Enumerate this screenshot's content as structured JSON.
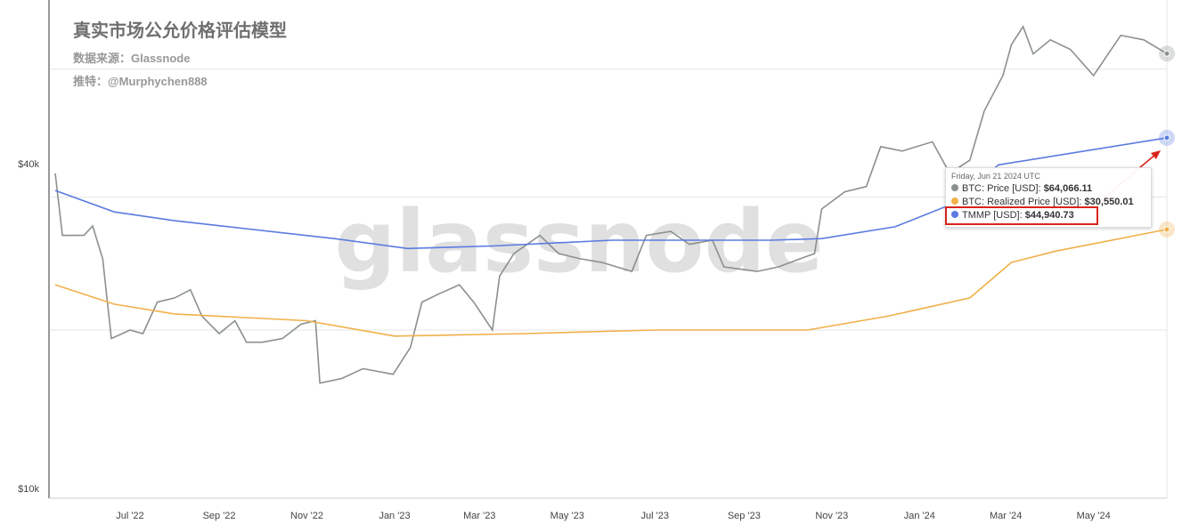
{
  "header": {
    "title": "真实市场公允价格评估模型",
    "source": "数据来源：Glassnode",
    "twitter": "推特：@Murphychen888"
  },
  "watermark": "glassnode",
  "tooltip": {
    "date": "Friday, Jun 21 2024 UTC",
    "rows": [
      {
        "label": "BTC: Price [USD]:",
        "value": "$64,066.11",
        "color": "#8a918d"
      },
      {
        "label": "BTC: Realized Price [USD]:",
        "value": "$30,550.01",
        "color": "#f0b04a"
      },
      {
        "label": "TMMP [USD]:",
        "value": "$44,940.73",
        "color": "#5b7be0",
        "highlighted": true
      }
    ]
  },
  "colors": {
    "highlight": "#d9241b"
  },
  "chart_data": {
    "type": "line",
    "yscale": "log",
    "ylim": [
      10000,
      80000
    ],
    "xlim": [
      "2022-05-10",
      "2024-06-21"
    ],
    "y_ticks": [
      {
        "value": 40000,
        "label": "$40k"
      },
      {
        "value": 10000,
        "label": "$10k"
      }
    ],
    "x_ticks": [
      {
        "date": "2022-07-01",
        "label": "Jul '22"
      },
      {
        "date": "2022-09-01",
        "label": "Sep '22"
      },
      {
        "date": "2022-11-01",
        "label": "Nov '22"
      },
      {
        "date": "2023-01-01",
        "label": "Jan '23"
      },
      {
        "date": "2023-03-01",
        "label": "Mar '23"
      },
      {
        "date": "2023-05-01",
        "label": "May '23"
      },
      {
        "date": "2023-07-01",
        "label": "Jul '23"
      },
      {
        "date": "2023-09-01",
        "label": "Sep '23"
      },
      {
        "date": "2023-11-01",
        "label": "Nov '23"
      },
      {
        "date": "2024-01-01",
        "label": "Jan '24"
      },
      {
        "date": "2024-03-01",
        "label": "Mar '24"
      },
      {
        "date": "2024-05-01",
        "label": "May '24"
      }
    ],
    "series": [
      {
        "name": "BTC: Price [USD]",
        "color": "#8a918d",
        "points": [
          [
            "2022-05-10",
            38700
          ],
          [
            "2022-05-15",
            29800
          ],
          [
            "2022-05-30",
            29800
          ],
          [
            "2022-06-05",
            31000
          ],
          [
            "2022-06-12",
            27000
          ],
          [
            "2022-06-18",
            19300
          ],
          [
            "2022-07-01",
            20000
          ],
          [
            "2022-07-10",
            19700
          ],
          [
            "2022-07-20",
            22500
          ],
          [
            "2022-08-01",
            22900
          ],
          [
            "2022-08-12",
            23700
          ],
          [
            "2022-08-20",
            21200
          ],
          [
            "2022-09-01",
            19700
          ],
          [
            "2022-09-12",
            20800
          ],
          [
            "2022-09-20",
            19000
          ],
          [
            "2022-10-01",
            19000
          ],
          [
            "2022-10-15",
            19300
          ],
          [
            "2022-10-28",
            20500
          ],
          [
            "2022-11-07",
            20800
          ],
          [
            "2022-11-10",
            16000
          ],
          [
            "2022-11-25",
            16300
          ],
          [
            "2022-12-10",
            17000
          ],
          [
            "2022-12-31",
            16600
          ],
          [
            "2023-01-12",
            18600
          ],
          [
            "2023-01-20",
            22500
          ],
          [
            "2023-02-01",
            23300
          ],
          [
            "2023-02-15",
            24200
          ],
          [
            "2023-02-25",
            22500
          ],
          [
            "2023-03-10",
            20000
          ],
          [
            "2023-03-15",
            25100
          ],
          [
            "2023-03-25",
            27600
          ],
          [
            "2023-04-12",
            29800
          ],
          [
            "2023-04-25",
            27600
          ],
          [
            "2023-05-10",
            27000
          ],
          [
            "2023-05-25",
            26600
          ],
          [
            "2023-06-15",
            25600
          ],
          [
            "2023-06-25",
            29800
          ],
          [
            "2023-07-12",
            30300
          ],
          [
            "2023-07-25",
            28700
          ],
          [
            "2023-08-10",
            29200
          ],
          [
            "2023-08-18",
            26100
          ],
          [
            "2023-09-10",
            25600
          ],
          [
            "2023-09-25",
            26100
          ],
          [
            "2023-10-10",
            27000
          ],
          [
            "2023-10-20",
            27600
          ],
          [
            "2023-10-25",
            33300
          ],
          [
            "2023-11-10",
            35800
          ],
          [
            "2023-11-25",
            36600
          ],
          [
            "2023-12-05",
            43300
          ],
          [
            "2023-12-20",
            42500
          ],
          [
            "2024-01-10",
            44200
          ],
          [
            "2024-01-22",
            38700
          ],
          [
            "2024-02-05",
            40900
          ],
          [
            "2024-02-15",
            50300
          ],
          [
            "2024-02-28",
            58400
          ],
          [
            "2024-03-05",
            66600
          ],
          [
            "2024-03-13",
            71800
          ],
          [
            "2024-03-20",
            64000
          ],
          [
            "2024-04-01",
            67900
          ],
          [
            "2024-04-15",
            65200
          ],
          [
            "2024-05-01",
            58400
          ],
          [
            "2024-05-20",
            69200
          ],
          [
            "2024-06-05",
            67900
          ],
          [
            "2024-06-21",
            64066.11
          ]
        ]
      },
      {
        "name": "BTC: Realized Price [USD]",
        "color": "#f0b04a",
        "points": [
          [
            "2022-05-10",
            24200
          ],
          [
            "2022-06-20",
            22300
          ],
          [
            "2022-08-01",
            21400
          ],
          [
            "2022-11-01",
            20800
          ],
          [
            "2023-01-01",
            19500
          ],
          [
            "2023-04-01",
            19700
          ],
          [
            "2023-07-01",
            20000
          ],
          [
            "2023-10-15",
            20000
          ],
          [
            "2023-12-10",
            21200
          ],
          [
            "2024-02-05",
            22900
          ],
          [
            "2024-03-05",
            26600
          ],
          [
            "2024-04-05",
            27900
          ],
          [
            "2024-06-21",
            30550.01
          ]
        ]
      },
      {
        "name": "TMMP [USD]",
        "color": "#5b7be0",
        "points": [
          [
            "2022-05-10",
            36000
          ],
          [
            "2022-06-20",
            32900
          ],
          [
            "2022-08-01",
            31700
          ],
          [
            "2022-11-20",
            29400
          ],
          [
            "2023-01-10",
            28200
          ],
          [
            "2023-03-10",
            28500
          ],
          [
            "2023-06-01",
            29200
          ],
          [
            "2023-09-20",
            29200
          ],
          [
            "2023-10-25",
            29400
          ],
          [
            "2023-12-15",
            30900
          ],
          [
            "2024-01-20",
            33700
          ],
          [
            "2024-02-25",
            40100
          ],
          [
            "2024-04-15",
            42100
          ],
          [
            "2024-06-21",
            44940.73
          ]
        ]
      }
    ]
  }
}
